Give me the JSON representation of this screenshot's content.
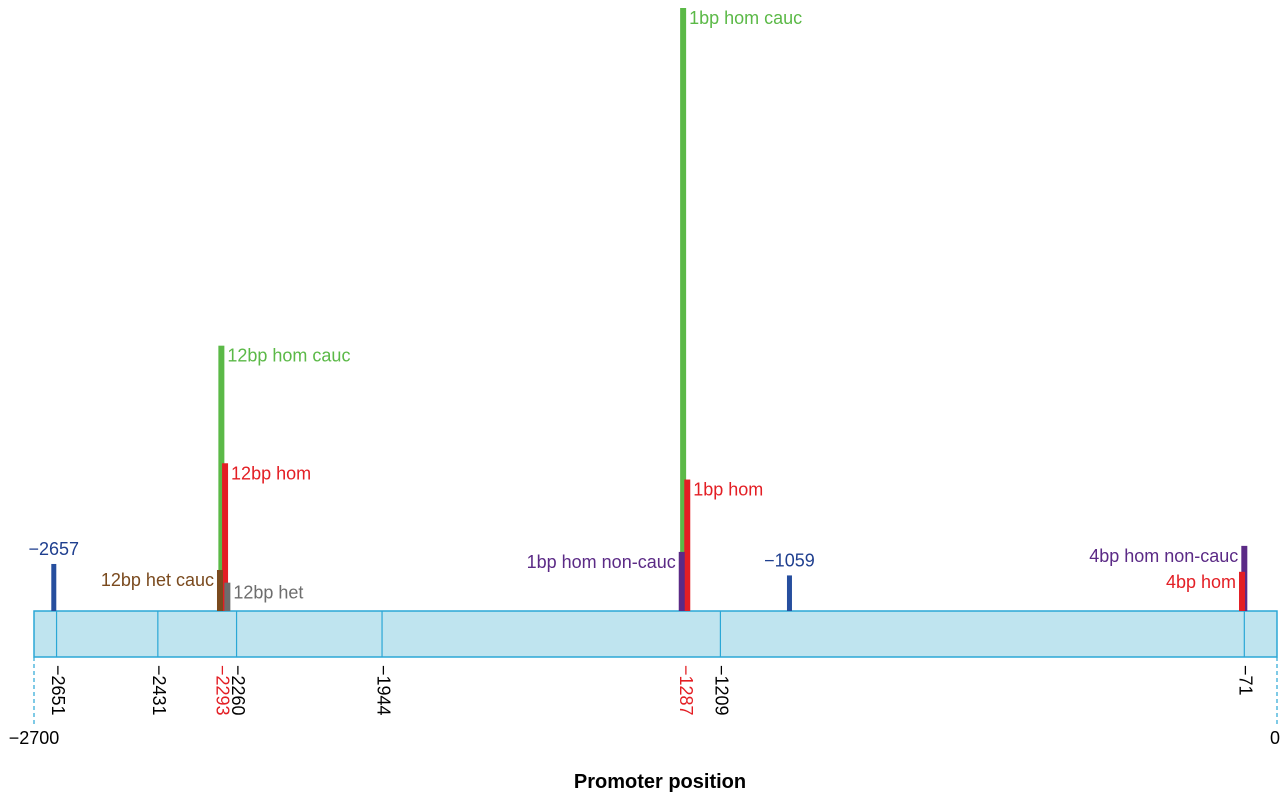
{
  "chart_data": {
    "type": "bar",
    "xlabel": "Promoter position",
    "xlim": [
      -2700,
      0
    ],
    "axis_end_labels": [
      "−2700",
      "0"
    ],
    "colors": {
      "promoter_fill": "#bfe4ef",
      "promoter_stroke": "#2aa7d6",
      "green": "#5bb947",
      "red": "#e31e24",
      "brown": "#7a4a1e",
      "gray": "#6d6d6d",
      "purple": "#5b2a86",
      "blue": "#264e9e",
      "dark_blue_text": "#1f3f8f",
      "black": "#000000"
    },
    "dividers": [
      -2651,
      -2431,
      -2260,
      -1944,
      -1209,
      -71
    ],
    "tick_labels": [
      {
        "position": -2651,
        "text": "−2651",
        "color": "#000000"
      },
      {
        "position": -2431,
        "text": "−2431",
        "color": "#000000"
      },
      {
        "position": -2293,
        "text": "−2293",
        "color": "#e31e24"
      },
      {
        "position": -2260,
        "text": "−2260",
        "color": "#000000"
      },
      {
        "position": -1944,
        "text": "−1944",
        "color": "#000000"
      },
      {
        "position": -1287,
        "text": "−1287",
        "color": "#e31e24"
      },
      {
        "position": -1209,
        "text": "−1209",
        "color": "#000000"
      },
      {
        "position": -71,
        "text": "−71",
        "color": "#000000"
      }
    ],
    "bars": [
      {
        "label": "12bp hom cauc",
        "position": -2293,
        "height": 0.44,
        "color": "#5bb947",
        "label_side": "right",
        "label_color": "#5bb947"
      },
      {
        "label": "12bp hom",
        "position": -2285,
        "height": 0.245,
        "color": "#e31e24",
        "label_side": "right",
        "label_color": "#e31e24"
      },
      {
        "label": "12bp het cauc",
        "position": -2296,
        "height": 0.068,
        "color": "#7a4a1e",
        "label_side": "left",
        "label_color": "#7a4a1e"
      },
      {
        "label": "12bp het",
        "position": -2280,
        "height": 0.047,
        "color": "#6d6d6d",
        "label_side": "right",
        "label_color": "#6d6d6d"
      },
      {
        "label": "1bp hom cauc",
        "position": -1290,
        "height": 1.0,
        "color": "#5bb947",
        "label_side": "right",
        "label_color": "#5bb947"
      },
      {
        "label": "1bp hom",
        "position": -1281,
        "height": 0.218,
        "color": "#e31e24",
        "label_side": "right",
        "label_color": "#e31e24"
      },
      {
        "label": "1bp hom non-cauc",
        "position": -1293,
        "height": 0.098,
        "color": "#5b2a86",
        "label_side": "left",
        "label_color": "#5b2a86"
      },
      {
        "label": "4bp hom non-cauc",
        "position": -71,
        "height": 0.108,
        "color": "#5b2a86",
        "label_side": "left",
        "label_color": "#5b2a86"
      },
      {
        "label": "4bp hom",
        "position": -76,
        "height": 0.065,
        "color": "#e31e24",
        "label_side": "left",
        "label_color": "#e31e24"
      }
    ],
    "markers": [
      {
        "label": "−2657",
        "position": -2657,
        "height": 0.078,
        "color": "#264e9e",
        "label_color": "#1f3f8f"
      },
      {
        "label": "−1059",
        "position": -1059,
        "height": 0.059,
        "color": "#264e9e",
        "label_color": "#1f3f8f"
      }
    ]
  }
}
